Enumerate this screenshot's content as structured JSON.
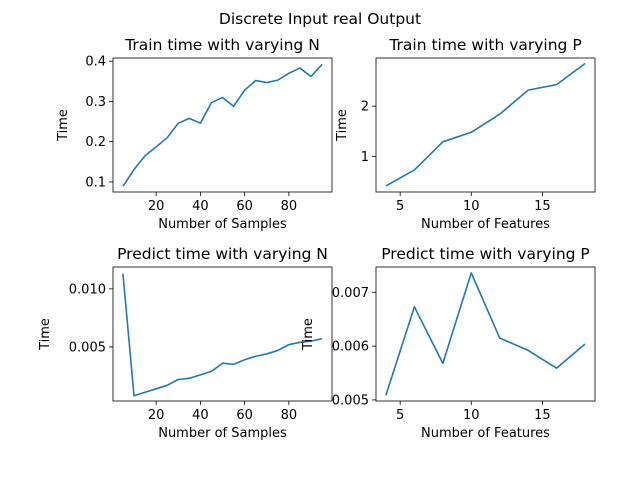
{
  "figure": {
    "suptitle": "Discrete Input real Output"
  },
  "chart_data": [
    {
      "type": "line",
      "title": "Train time with varying N",
      "xlabel": "Number of Samples",
      "ylabel": "Time",
      "xlim": [
        0.5,
        99.5
      ],
      "ylim": [
        0.075,
        0.408
      ],
      "xticks": [
        20,
        40,
        60,
        80
      ],
      "yticks": [
        0.1,
        0.2,
        0.3,
        0.4
      ],
      "ytick_decimals": 1,
      "color": "#1f77b4",
      "x": [
        5,
        10,
        15,
        20,
        25,
        30,
        35,
        40,
        45,
        50,
        55,
        60,
        65,
        70,
        75,
        80,
        85,
        90,
        95
      ],
      "y": [
        0.089,
        0.131,
        0.165,
        0.187,
        0.21,
        0.246,
        0.258,
        0.246,
        0.297,
        0.31,
        0.288,
        0.328,
        0.352,
        0.347,
        0.353,
        0.37,
        0.383,
        0.362,
        0.392
      ]
    },
    {
      "type": "line",
      "title": "Train time with varying P",
      "xlabel": "Number of Features",
      "ylabel": "Time",
      "xlim": [
        3.3,
        18.7
      ],
      "ylim": [
        0.29,
        2.96
      ],
      "xticks": [
        5,
        10,
        15
      ],
      "yticks": [
        1,
        2
      ],
      "ytick_decimals": 0,
      "color": "#1f77b4",
      "x": [
        4,
        6,
        8,
        10,
        12,
        14,
        16,
        18
      ],
      "y": [
        0.41,
        0.73,
        1.29,
        1.48,
        1.84,
        2.32,
        2.43,
        2.85
      ]
    },
    {
      "type": "line",
      "title": "Predict time with varying N",
      "xlabel": "Number of Samples",
      "ylabel": "Time",
      "xlim": [
        0.5,
        99.5
      ],
      "ylim": [
        0.00035,
        0.01188
      ],
      "xticks": [
        20,
        40,
        60,
        80
      ],
      "yticks": [
        0.005,
        0.01
      ],
      "ytick_decimals": 3,
      "color": "#1f77b4",
      "x": [
        5,
        10,
        15,
        20,
        25,
        30,
        35,
        40,
        45,
        50,
        55,
        60,
        65,
        70,
        75,
        80,
        85,
        90,
        95
      ],
      "y": [
        0.0113,
        0.0008,
        0.0011,
        0.0014,
        0.0017,
        0.0022,
        0.0023,
        0.0026,
        0.0029,
        0.0036,
        0.0035,
        0.0039,
        0.0042,
        0.0044,
        0.0047,
        0.0052,
        0.0054,
        0.0055,
        0.0057
      ]
    },
    {
      "type": "line",
      "title": "Predict time with varying P",
      "xlabel": "Number of Features",
      "ylabel": "Time",
      "xlim": [
        3.3,
        18.7
      ],
      "ylim": [
        0.00498,
        0.00747
      ],
      "xticks": [
        5,
        10,
        15
      ],
      "yticks": [
        0.005,
        0.006,
        0.007
      ],
      "ytick_decimals": 3,
      "color": "#1f77b4",
      "x": [
        4,
        6,
        8,
        10,
        12,
        14,
        16,
        18
      ],
      "y": [
        0.00509,
        0.00673,
        0.00568,
        0.00736,
        0.00615,
        0.00592,
        0.00559,
        0.00604
      ]
    }
  ]
}
